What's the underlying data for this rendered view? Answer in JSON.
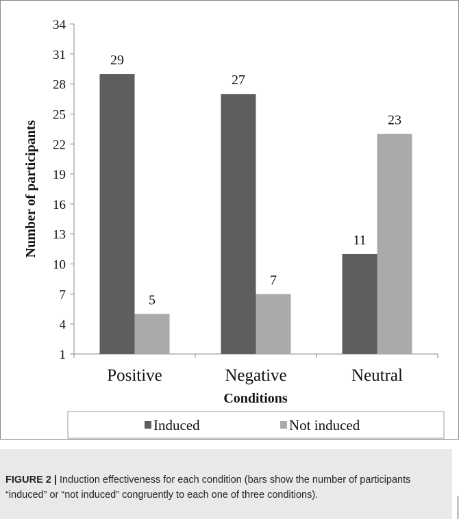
{
  "chart_data": {
    "type": "bar",
    "categories": [
      "Positive",
      "Negative",
      "Neutral"
    ],
    "series": [
      {
        "name": "Induced",
        "values": [
          29,
          27,
          11
        ],
        "color": "#5e5e5e"
      },
      {
        "name": "Not induced",
        "values": [
          5,
          7,
          23
        ],
        "color": "#aaaaaa"
      }
    ],
    "xlabel": "Conditions",
    "ylabel": "Number of participants",
    "ylim": [
      1,
      34
    ],
    "yticks": [
      1,
      4,
      7,
      10,
      13,
      16,
      19,
      22,
      25,
      28,
      31,
      34
    ],
    "data_labels": true,
    "grid": false,
    "legend_position": "bottom-center"
  },
  "caption": {
    "label": "FIGURE 2 |",
    "text": " Induction effectiveness for each condition (bars show the number of participants “induced” or “not induced” congruently to each one of three conditions)."
  }
}
